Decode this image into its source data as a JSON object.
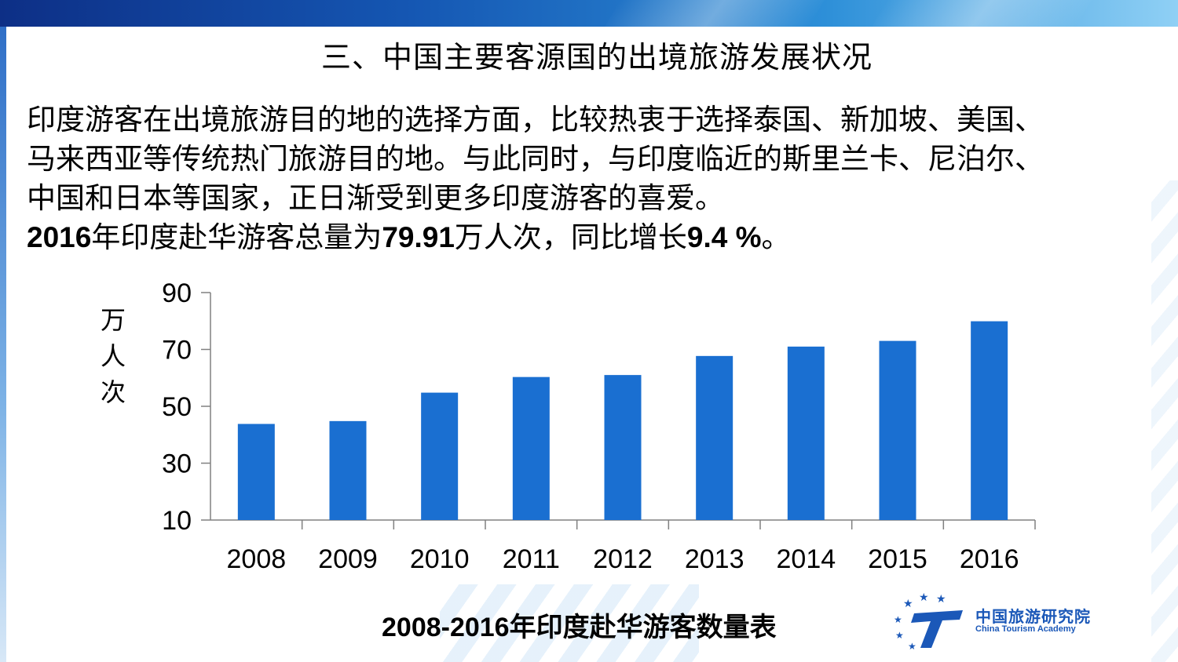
{
  "slide": {
    "title": "三、中国主要客源国的出境旅游发展状况",
    "paragraph_lines": [
      "印度游客在出境旅游目的地的选择方面，比较热衷于选择泰国、新加坡、美国、",
      "马来西亚等传统热门旅游目的地。与此同时，与印度临近的斯里兰卡、尼泊尔、",
      "中国和日本等国家，正日渐受到更多印度游客的喜爱。"
    ],
    "highlight": {
      "year": "2016",
      "text1": "年印度赴华游客总量为",
      "value": "79.91",
      "text2": "万人次，同比增长",
      "growth": "9.4 %",
      "end": "。"
    },
    "caption_bold": "2008-2016",
    "caption_rest": "年印度赴华游客数量表",
    "logo": {
      "cn": "中国旅游研究院",
      "en": "China Tourism Academy"
    }
  },
  "colors": {
    "bar": "#1a6fd1",
    "axis": "#808080",
    "header_start": "#0d2f86",
    "header_end": "#8fd0f5",
    "logo_blue": "#1b58b8"
  },
  "chart_data": {
    "type": "bar",
    "categories": [
      "2008",
      "2009",
      "2010",
      "2011",
      "2012",
      "2013",
      "2014",
      "2015",
      "2016"
    ],
    "values": [
      43.8,
      44.8,
      54.8,
      60.3,
      61,
      67.7,
      71,
      73,
      79.91
    ],
    "ylabel": "万人次",
    "ylim": [
      10,
      90
    ],
    "yticks": [
      10,
      30,
      50,
      70,
      90
    ],
    "grid": false,
    "legend": "none"
  }
}
